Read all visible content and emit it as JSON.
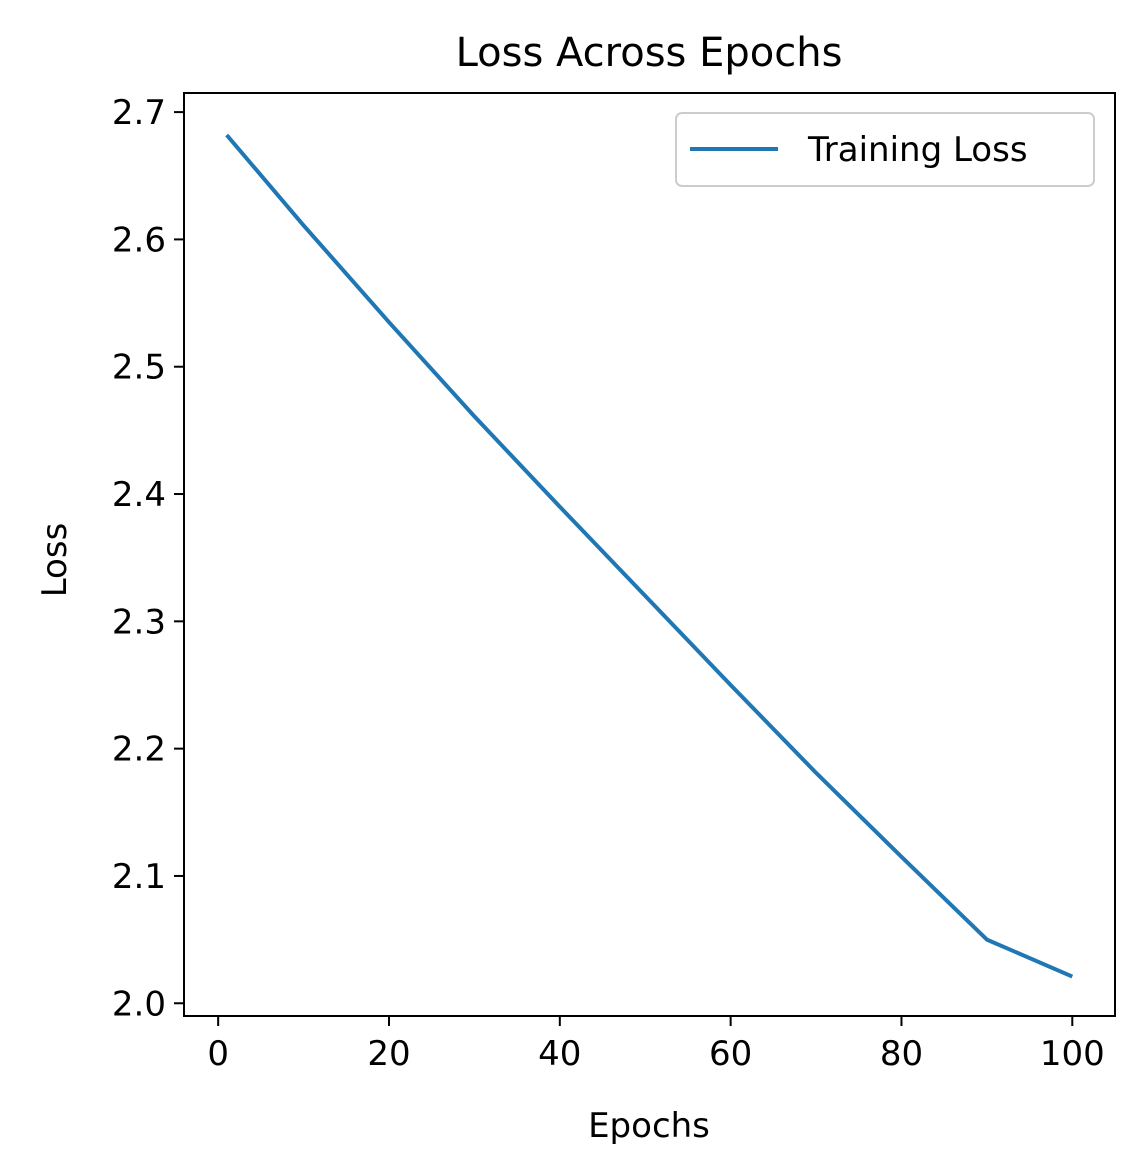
{
  "chart_data": {
    "type": "line",
    "title": "Loss Across Epochs",
    "xlabel": "Epochs",
    "ylabel": "Loss",
    "xlim": [
      -4,
      105
    ],
    "ylim": [
      1.99,
      2.715
    ],
    "x_ticks": [
      0,
      20,
      40,
      60,
      80,
      100
    ],
    "x_tick_labels": [
      "0",
      "20",
      "40",
      "60",
      "80",
      "100"
    ],
    "y_ticks": [
      2.0,
      2.1,
      2.2,
      2.3,
      2.4,
      2.5,
      2.6,
      2.7
    ],
    "y_tick_labels": [
      "2.0",
      "2.1",
      "2.2",
      "2.3",
      "2.4",
      "2.5",
      "2.6",
      "2.7"
    ],
    "grid": false,
    "legend": {
      "position": "upper right"
    },
    "series": [
      {
        "name": "Training Loss",
        "color": "#1f77b4",
        "x": [
          1,
          10,
          20,
          30,
          40,
          50,
          60,
          70,
          80,
          90,
          100
        ],
        "y": [
          2.682,
          2.611,
          2.535,
          2.461,
          2.39,
          2.32,
          2.25,
          2.181,
          2.115,
          2.05,
          2.021
        ]
      }
    ]
  }
}
